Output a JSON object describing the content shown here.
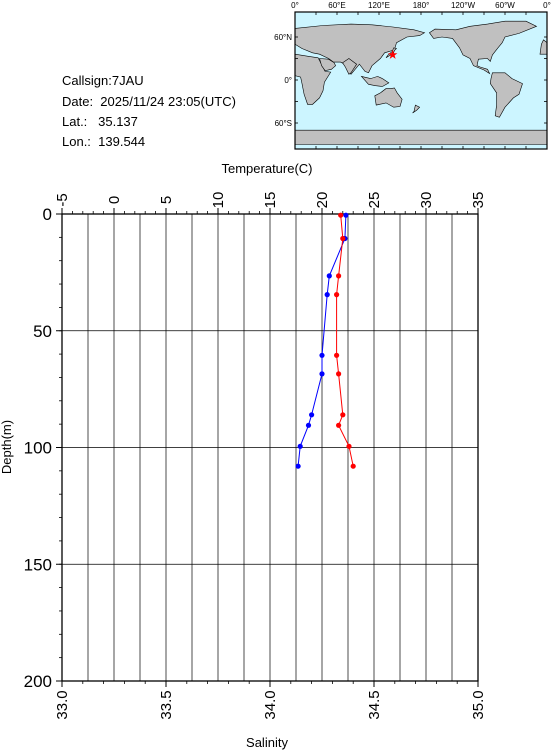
{
  "station": {
    "callsign": "Callsign:7JAU",
    "date": "Date:  2025/11/24 23:05(UTC)",
    "lat": "Lat.:   35.137",
    "lon": "Lon.:  139.544"
  },
  "map": {
    "top_ticks": [
      "0°",
      "60°E",
      "120°E",
      "180°",
      "120°W",
      "60°W",
      "0°"
    ],
    "lat_ticks": [
      "60°N",
      "0°",
      "60°S"
    ],
    "ocean_color": "#ccf5ff",
    "land_color": "#c0c0c0",
    "marker": {
      "lat": 35.137,
      "lon": 139.544,
      "color": "#ff0000",
      "icon": "star-icon"
    }
  },
  "chart_data": {
    "type": "line",
    "title": "",
    "top_axis": {
      "label": "Temperature(C)",
      "range": [
        -5,
        35
      ],
      "ticks": [
        "-5",
        "0",
        "5",
        "10",
        "15",
        "20",
        "25",
        "30",
        "35"
      ]
    },
    "bottom_axis": {
      "label": "Salinity",
      "range": [
        33.0,
        35.0
      ],
      "ticks": [
        "33.0",
        "33.5",
        "34.0",
        "34.5",
        "35.0"
      ]
    },
    "y_axis": {
      "label": "Depth(m)",
      "range": [
        0,
        200
      ],
      "inverted": true,
      "ticks": [
        "0",
        "50",
        "100",
        "150",
        "200"
      ]
    },
    "grid": true,
    "series": [
      {
        "quantity": "temperature",
        "axis": "top",
        "color": "#0000ff",
        "points": [
          {
            "x": 22.3,
            "y": 0.5
          },
          {
            "x": 22.2,
            "y": 10.5
          },
          {
            "x": 20.7,
            "y": 26.5
          },
          {
            "x": 20.5,
            "y": 34.5
          },
          {
            "x": 20.0,
            "y": 60.5
          },
          {
            "x": 20.0,
            "y": 68.5
          },
          {
            "x": 19.0,
            "y": 86
          },
          {
            "x": 18.7,
            "y": 90.5
          },
          {
            "x": 17.9,
            "y": 99.5
          },
          {
            "x": 17.7,
            "y": 108
          }
        ]
      },
      {
        "quantity": "salinity",
        "axis": "bottom",
        "color": "#ff0000",
        "points": [
          {
            "x": 34.34,
            "y": 0.5
          },
          {
            "x": 34.35,
            "y": 10.5
          },
          {
            "x": 34.33,
            "y": 26.5
          },
          {
            "x": 34.32,
            "y": 34.5
          },
          {
            "x": 34.32,
            "y": 60.5
          },
          {
            "x": 34.33,
            "y": 68.5
          },
          {
            "x": 34.35,
            "y": 86
          },
          {
            "x": 34.33,
            "y": 90.5
          },
          {
            "x": 34.38,
            "y": 99.5
          },
          {
            "x": 34.4,
            "y": 108
          }
        ]
      }
    ]
  }
}
